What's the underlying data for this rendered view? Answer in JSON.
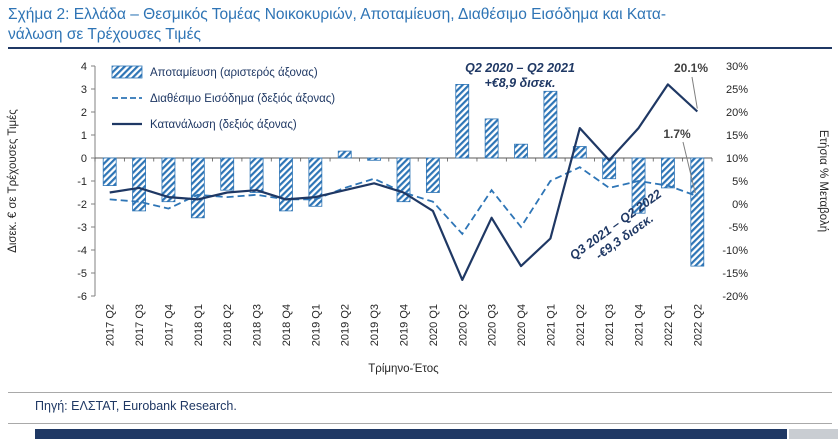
{
  "header": {
    "title_line1": "Σχήμα 2: Ελλάδα – Θεσμικός Τομέας Νοικοκυριών, Αποταμίευση, Διαθέσιμο Εισόδημα και Κατα-",
    "title_line2": "νάλωση σε Τρέχουσες Τιμές"
  },
  "footer": {
    "source": "Πηγή: ΕΛΣΤΑΤ, Eurobank Research."
  },
  "colors": {
    "title_blue": "#2E74B5",
    "navy": "#1F3864",
    "blue": "#2E75B6",
    "axis_text": "#262626",
    "leader_gray": "#7F7F7F"
  },
  "chart_data": {
    "type": "combo-bar-line",
    "categories": [
      "2017 Q2",
      "2017 Q3",
      "2017 Q4",
      "2018 Q1",
      "2018 Q2",
      "2018 Q3",
      "2018 Q4",
      "2019 Q1",
      "2019 Q2",
      "2019 Q3",
      "2019 Q4",
      "2020 Q1",
      "2020 Q2",
      "2020 Q3",
      "2020 Q4",
      "2021 Q1",
      "2021 Q2",
      "2021 Q3",
      "2021 Q4",
      "2022 Q1",
      "2022 Q2"
    ],
    "series": [
      {
        "name": "Αποταμίευση (αριστερός άξονας)",
        "type": "bar",
        "axis": "left",
        "style": "hatched",
        "color": "#2E75B6",
        "unit": "δισεκ. €",
        "values": [
          -1.2,
          -2.3,
          -1.9,
          -2.6,
          -1.4,
          -1.5,
          -2.3,
          -2.1,
          0.3,
          -0.1,
          -1.9,
          -1.5,
          3.2,
          1.7,
          0.6,
          2.9,
          0.5,
          -0.9,
          -2.4,
          -1.3,
          -4.7
        ]
      },
      {
        "name": "Διαθέσιμο Εισόδημα (δεξιός άξονας)",
        "type": "line",
        "axis": "right",
        "style": "dashed",
        "color": "#2E75B6",
        "unit": "%",
        "values": [
          1.0,
          0.5,
          -1.0,
          2.0,
          1.5,
          2.0,
          1.0,
          1.0,
          3.5,
          5.5,
          2.5,
          0.5,
          -6.5,
          3.0,
          -5.0,
          5.0,
          8.0,
          3.5,
          5.0,
          4.0,
          1.7
        ]
      },
      {
        "name": "Κατανάλωση (δεξιός άξονας)",
        "type": "line",
        "axis": "right",
        "style": "solid",
        "color": "#1F3864",
        "unit": "%",
        "values": [
          2.5,
          3.5,
          1.5,
          1.0,
          2.5,
          3.0,
          1.0,
          1.5,
          3.0,
          4.5,
          2.5,
          -1.5,
          -16.5,
          -3.0,
          -13.5,
          -7.5,
          16.5,
          9.5,
          16.5,
          26.0,
          20.1
        ]
      }
    ],
    "xlabel": "Τρίμηνο-Έτος",
    "left_axis": {
      "label": "Δισεκ. € σε Τρέχουσες Τιμές",
      "min": -6,
      "max": 4,
      "step": 1,
      "ticks": [
        "4",
        "3",
        "2",
        "1",
        "0",
        "-1",
        "-2",
        "-3",
        "-4",
        "-5",
        "-6"
      ]
    },
    "right_axis": {
      "label": "Ετήσια % Μεταβολή",
      "min": -20,
      "max": 30,
      "step": 5,
      "ticks": [
        "30%",
        "25%",
        "20%",
        "15%",
        "10%",
        "5%",
        "0%",
        "-5%",
        "-10%",
        "-15%",
        "-20%"
      ]
    },
    "grid": false,
    "legend_position": "top-left",
    "annotations": {
      "period1": [
        "Q2 2020 – Q2 2021",
        "+€8,9 δισεκ."
      ],
      "consumption_last": "20.1%",
      "income_last": "1.7%",
      "period2": [
        "Q3 2021 – Q2 2022",
        "-€9,3 δισεκ."
      ]
    }
  }
}
